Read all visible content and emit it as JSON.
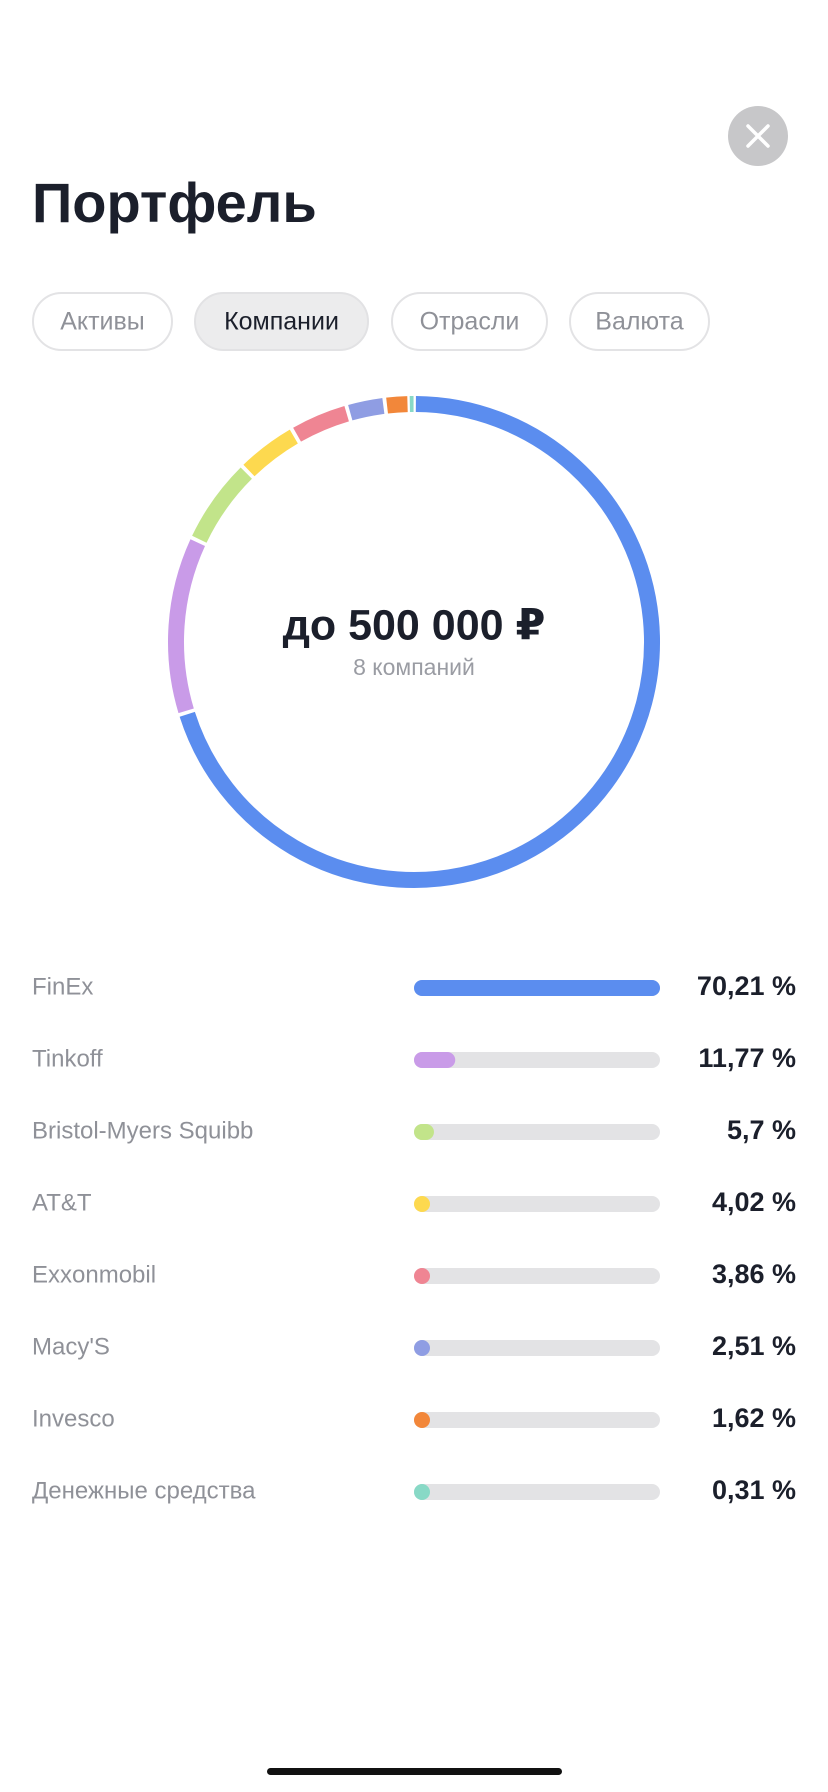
{
  "header": {
    "title": "Портфель"
  },
  "tabs": [
    "Активы",
    "Компании",
    "Отрасли",
    "Валюта"
  ],
  "active_tab": 1,
  "chart_data": {
    "type": "donut",
    "title": "до 500 000 ₽",
    "subtitle": "8 компаний",
    "categories": [
      "FinEx",
      "Tinkoff",
      "Bristol-Myers Squibb",
      "AT&T",
      "Exxonmobil",
      "Macy'S",
      "Invesco",
      "Денежные средства"
    ],
    "values": [
      70.21,
      11.77,
      5.7,
      4.02,
      3.86,
      2.51,
      1.62,
      0.31
    ],
    "value_labels": [
      "70,21 %",
      "11,77 %",
      "5,7 %",
      "4,02 %",
      "3,86 %",
      "2,51 %",
      "1,62 %",
      "0,31 %"
    ],
    "colors": [
      "#5b8def",
      "#c99be8",
      "#c2e48a",
      "#fdd94f",
      "#ef8593",
      "#8f9de3",
      "#f2873a",
      "#88d9c6"
    ]
  }
}
